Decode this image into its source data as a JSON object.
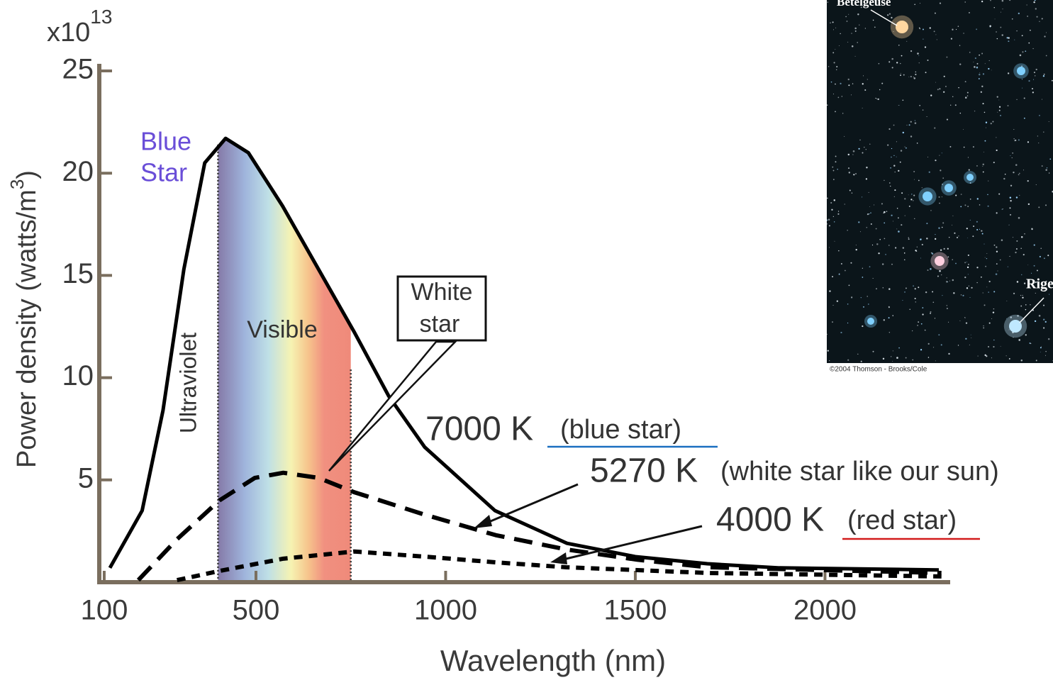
{
  "chart_data": {
    "type": "line",
    "y_label": "Power density (watts/m",
    "y_label_sup": "3",
    "y_label_end": ")",
    "y_multiplier": "x10",
    "y_exponent": "13",
    "x_label": "Wavelength (nm)",
    "xlim": [
      87,
      2330
    ],
    "ylim": [
      0,
      25
    ],
    "xticks": [
      100,
      500,
      1000,
      1500,
      2000
    ],
    "yticks": [
      5,
      10,
      15,
      20,
      25
    ],
    "visible_band": [
      400,
      750
    ],
    "series": [
      {
        "name": "7000 K",
        "color": "#000000",
        "style": "solid",
        "x": [
          115,
          200,
          255,
          310,
          365,
          420,
          480,
          570,
          665,
          760,
          850,
          945,
          1130,
          1320,
          1500,
          1690,
          1880,
          2300
        ],
        "values": [
          0.7,
          3.5,
          8.4,
          15.3,
          20.5,
          21.7,
          21.0,
          18.4,
          15.3,
          12.2,
          9.1,
          6.6,
          3.5,
          1.9,
          1.25,
          0.9,
          0.7,
          0.6
        ]
      },
      {
        "name": "5270 K",
        "color": "#000000",
        "style": "dashed",
        "x": [
          190,
          292,
          404,
          497,
          572,
          665,
          759,
          945,
          1132,
          1318,
          1505,
          1691,
          2307
        ],
        "values": [
          0.1,
          2.1,
          4.0,
          5.1,
          5.35,
          5.1,
          4.4,
          3.3,
          2.3,
          1.6,
          1.1,
          0.73,
          0.45
        ]
      },
      {
        "name": "4000 K",
        "color": "#000000",
        "style": "dotted",
        "x": [
          292,
          404,
          572,
          759,
          945,
          1132,
          1318,
          1691,
          2307
        ],
        "values": [
          0.1,
          0.55,
          1.15,
          1.5,
          1.25,
          0.97,
          0.73,
          0.45,
          0.28
        ]
      }
    ],
    "annotations": {
      "blue_star_1": "Blue",
      "blue_star_2": "Star",
      "ultraviolet": "Ultraviolet",
      "visible": "Visible",
      "white_star_1": "White",
      "white_star_2": "star",
      "desc_7000": "(blue star)",
      "desc_5270": "(white star like our sun)",
      "desc_4000": "(red star)"
    }
  },
  "photo": {
    "betelgeuse": "Betelgeuse",
    "rigel": "Rigel",
    "credit": "©2004 Thomson - Brooks/Cole"
  }
}
